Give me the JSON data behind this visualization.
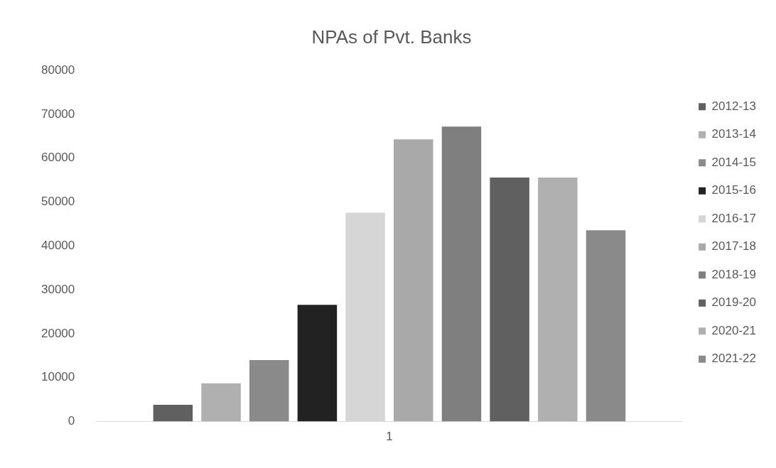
{
  "chart_data": {
    "type": "bar",
    "title": "NPAs of Pvt. Banks",
    "categories": [
      "1"
    ],
    "series": [
      {
        "name": "2012-13",
        "color": "#606060",
        "values": [
          3800
        ]
      },
      {
        "name": "2013-14",
        "color": "#b0b0b0",
        "values": [
          8700
        ]
      },
      {
        "name": "2014-15",
        "color": "#8a8a8a",
        "values": [
          14000
        ]
      },
      {
        "name": "2015-16",
        "color": "#222222",
        "values": [
          26600
        ]
      },
      {
        "name": "2016-17",
        "color": "#d6d6d6",
        "values": [
          47600
        ]
      },
      {
        "name": "2017-18",
        "color": "#a9a9a9",
        "values": [
          64300
        ]
      },
      {
        "name": "2018-19",
        "color": "#7f7f7f",
        "values": [
          67200
        ]
      },
      {
        "name": "2019-20",
        "color": "#606060",
        "values": [
          55600
        ]
      },
      {
        "name": "2020-21",
        "color": "#b0b0b0",
        "values": [
          55600
        ]
      },
      {
        "name": "2021-22",
        "color": "#8a8a8a",
        "values": [
          43600
        ]
      }
    ],
    "ylim": [
      0,
      80000
    ],
    "yticks": [
      0,
      10000,
      20000,
      30000,
      40000,
      50000,
      60000,
      70000,
      80000
    ],
    "grid": false,
    "legend": "right"
  }
}
